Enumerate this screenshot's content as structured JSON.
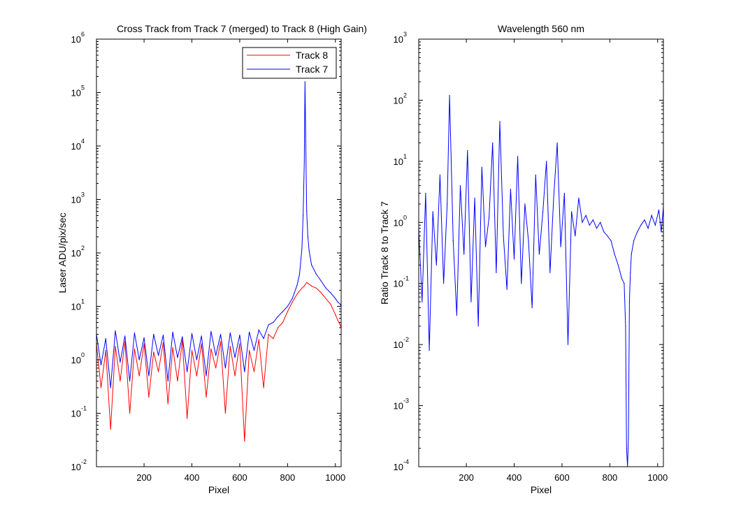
{
  "chart_data": [
    {
      "type": "line",
      "title": "Cross Track from Track 7 (merged) to Track 8 (High Gain)",
      "xlabel": "Pixel",
      "ylabel": "Laser ADU/pix/sec",
      "xlim": [
        1,
        1024
      ],
      "ylim": [
        0.01,
        1000000
      ],
      "yscale": "log",
      "x_ticks": [
        "200",
        "400",
        "600",
        "800",
        "1000"
      ],
      "y_ticks": [
        {
          "base": "10",
          "exp": "-2"
        },
        {
          "base": "10",
          "exp": "-1"
        },
        {
          "base": "10",
          "exp": "0"
        },
        {
          "base": "10",
          "exp": "1"
        },
        {
          "base": "10",
          "exp": "2"
        },
        {
          "base": "10",
          "exp": "3"
        },
        {
          "base": "10",
          "exp": "4"
        },
        {
          "base": "10",
          "exp": "5"
        },
        {
          "base": "10",
          "exp": "6"
        }
      ],
      "legend_position": "top-right",
      "series": [
        {
          "name": "Track 8",
          "color": "#ff0000",
          "x": [
            1,
            20,
            40,
            60,
            80,
            100,
            120,
            140,
            160,
            180,
            200,
            220,
            240,
            260,
            280,
            300,
            320,
            340,
            360,
            380,
            400,
            420,
            440,
            460,
            480,
            500,
            520,
            540,
            560,
            580,
            600,
            620,
            640,
            660,
            680,
            700,
            720,
            740,
            760,
            780,
            800,
            820,
            840,
            860,
            870,
            880,
            890,
            900,
            920,
            940,
            960,
            980,
            1000,
            1010,
            1020,
            1024
          ],
          "y": [
            2.0,
            0.3,
            1.5,
            0.05,
            1.8,
            0.4,
            2.2,
            0.1,
            1.6,
            0.5,
            2.0,
            0.2,
            1.4,
            0.6,
            2.1,
            0.15,
            1.7,
            0.4,
            2.3,
            0.08,
            1.5,
            0.5,
            2.0,
            0.2,
            1.6,
            0.7,
            2.2,
            0.1,
            1.8,
            0.5,
            2.0,
            0.03,
            1.5,
            0.6,
            2.4,
            0.3,
            3.0,
            2.5,
            4.0,
            5.0,
            8.0,
            12,
            17,
            22,
            24,
            28,
            26,
            24,
            22,
            18,
            14,
            11,
            7.0,
            5.5,
            4.5,
            4.0
          ]
        },
        {
          "name": "Track 7",
          "color": "#0000ff",
          "x": [
            1,
            20,
            40,
            60,
            80,
            100,
            120,
            140,
            160,
            180,
            200,
            220,
            240,
            260,
            280,
            300,
            320,
            340,
            360,
            380,
            400,
            420,
            440,
            460,
            480,
            500,
            520,
            540,
            560,
            580,
            600,
            620,
            640,
            660,
            680,
            700,
            720,
            740,
            760,
            780,
            800,
            820,
            840,
            850,
            860,
            865,
            870,
            873,
            876,
            880,
            885,
            890,
            900,
            920,
            940,
            960,
            980,
            1000,
            1010,
            1020,
            1024
          ],
          "y": [
            3.0,
            0.8,
            2.5,
            0.3,
            3.5,
            0.9,
            2.8,
            0.4,
            3.2,
            1.0,
            2.6,
            0.5,
            3.0,
            1.2,
            2.9,
            0.4,
            3.3,
            1.1,
            2.7,
            0.6,
            3.1,
            1.0,
            2.8,
            0.5,
            3.4,
            1.2,
            3.0,
            0.7,
            3.2,
            1.1,
            2.9,
            0.6,
            3.3,
            1.5,
            3.6,
            2.5,
            4.5,
            5.0,
            6.5,
            8.0,
            10,
            14,
            25,
            40,
            120,
            500,
            5000,
            160000,
            12000,
            600,
            200,
            110,
            60,
            40,
            30,
            22,
            18,
            14,
            12,
            11,
            10
          ]
        }
      ]
    },
    {
      "type": "line",
      "title": "Wavelength 560 nm",
      "xlabel": "Pixel",
      "ylabel": "Ratio Track 8 to Track 7",
      "xlim": [
        1,
        1024
      ],
      "ylim": [
        0.0001,
        1000
      ],
      "yscale": "log",
      "x_ticks": [
        "200",
        "400",
        "600",
        "800",
        "1000"
      ],
      "y_ticks": [
        {
          "base": "10",
          "exp": "-4"
        },
        {
          "base": "10",
          "exp": "-3"
        },
        {
          "base": "10",
          "exp": "-2"
        },
        {
          "base": "10",
          "exp": "-1"
        },
        {
          "base": "10",
          "exp": "0"
        },
        {
          "base": "10",
          "exp": "1"
        },
        {
          "base": "10",
          "exp": "2"
        },
        {
          "base": "10",
          "exp": "3"
        }
      ],
      "series": [
        {
          "color": "#0000ff",
          "x": [
            1,
            15,
            30,
            45,
            60,
            75,
            90,
            105,
            120,
            130,
            145,
            160,
            175,
            190,
            205,
            220,
            235,
            250,
            265,
            280,
            295,
            310,
            325,
            340,
            355,
            370,
            385,
            400,
            415,
            430,
            445,
            460,
            475,
            490,
            505,
            520,
            535,
            550,
            565,
            580,
            595,
            610,
            625,
            640,
            655,
            670,
            685,
            700,
            715,
            730,
            745,
            760,
            775,
            790,
            805,
            820,
            835,
            850,
            860,
            866,
            870,
            874,
            878,
            882,
            886,
            890,
            900,
            915,
            930,
            945,
            960,
            975,
            990,
            1005,
            1015,
            1024
          ],
          "y": [
            0.8,
            0.05,
            3.0,
            0.008,
            1.5,
            0.2,
            6.0,
            0.1,
            2.0,
            120,
            0.5,
            0.03,
            4.0,
            0.3,
            15,
            0.05,
            2.5,
            0.02,
            8.0,
            0.4,
            1.2,
            20,
            0.15,
            45,
            0.6,
            0.08,
            3.5,
            0.25,
            12,
            0.1,
            2.0,
            0.5,
            0.04,
            6.0,
            0.3,
            1.5,
            10,
            0.15,
            2.5,
            20,
            0.4,
            3.0,
            0.01,
            1.5,
            0.6,
            2.5,
            1.0,
            1.3,
            0.9,
            1.1,
            0.8,
            1.0,
            0.7,
            0.6,
            0.5,
            0.3,
            0.2,
            0.12,
            0.1,
            0.02,
            0.0002,
            0.0001,
            0.0003,
            0.05,
            0.15,
            0.3,
            0.5,
            0.7,
            0.9,
            1.1,
            0.8,
            1.3,
            0.9,
            1.6,
            0.7,
            1.8
          ]
        }
      ]
    }
  ]
}
